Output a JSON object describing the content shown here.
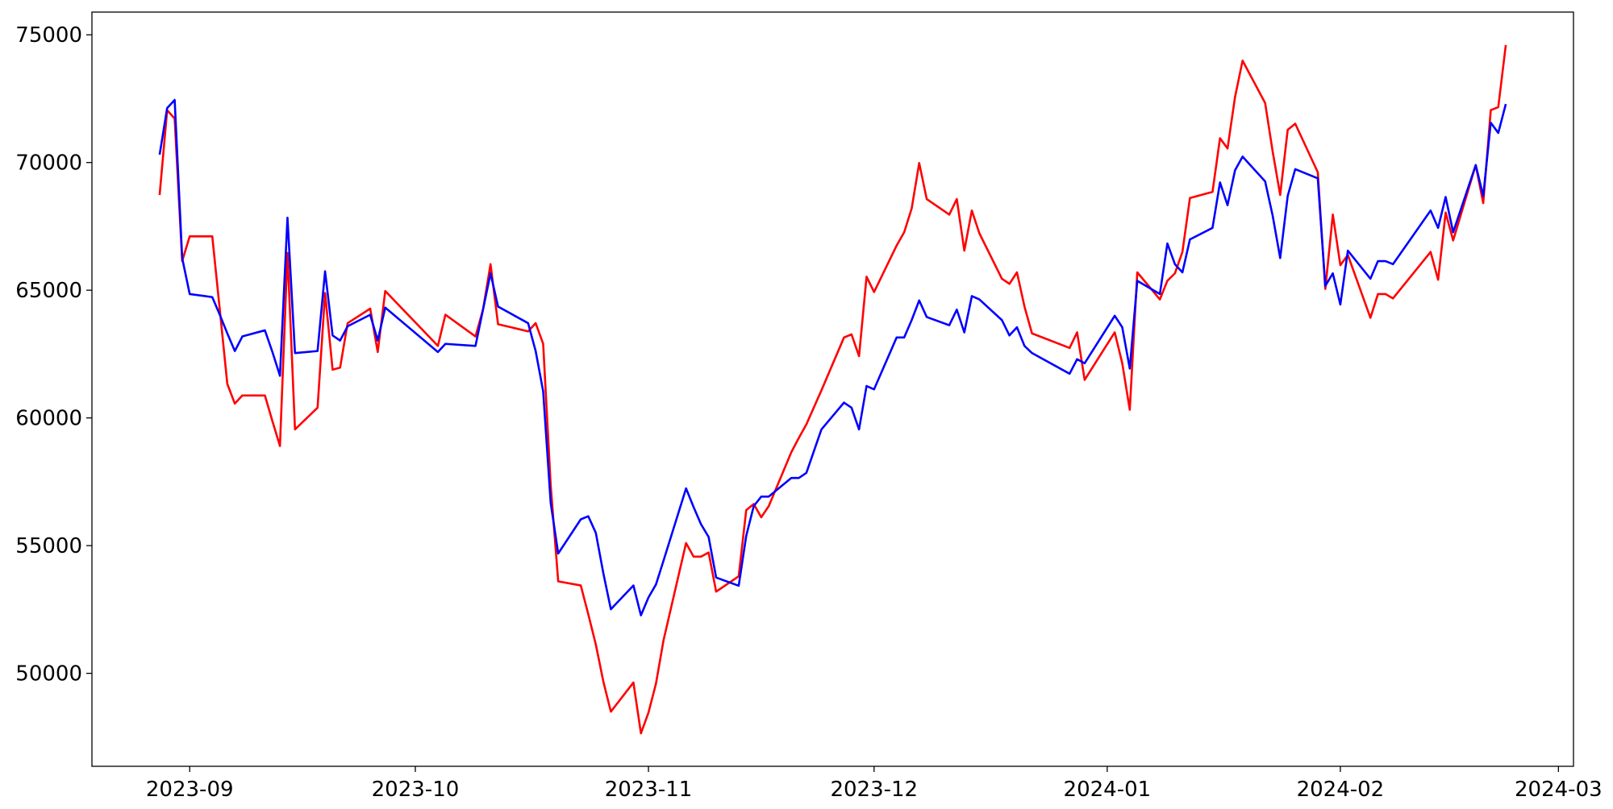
{
  "chart_data": {
    "type": "line",
    "x": [
      "2023-08-28",
      "2023-08-29",
      "2023-08-30",
      "2023-08-31",
      "2023-09-01",
      "2023-09-04",
      "2023-09-05",
      "2023-09-06",
      "2023-09-07",
      "2023-09-08",
      "2023-09-11",
      "2023-09-12",
      "2023-09-13",
      "2023-09-14",
      "2023-09-15",
      "2023-09-18",
      "2023-09-19",
      "2023-09-20",
      "2023-09-21",
      "2023-09-22",
      "2023-09-25",
      "2023-09-26",
      "2023-09-27",
      "2023-10-04",
      "2023-10-05",
      "2023-10-09",
      "2023-10-10",
      "2023-10-11",
      "2023-10-12",
      "2023-10-16",
      "2023-10-17",
      "2023-10-18",
      "2023-10-19",
      "2023-10-20",
      "2023-10-23",
      "2023-10-24",
      "2023-10-25",
      "2023-10-26",
      "2023-10-27",
      "2023-10-30",
      "2023-10-31",
      "2023-11-01",
      "2023-11-02",
      "2023-11-03",
      "2023-11-06",
      "2023-11-07",
      "2023-11-08",
      "2023-11-09",
      "2023-11-10",
      "2023-11-13",
      "2023-11-14",
      "2023-11-15",
      "2023-11-16",
      "2023-11-17",
      "2023-11-20",
      "2023-11-21",
      "2023-11-22",
      "2023-11-24",
      "2023-11-27",
      "2023-11-28",
      "2023-11-29",
      "2023-11-30",
      "2023-12-01",
      "2023-12-04",
      "2023-12-05",
      "2023-12-06",
      "2023-12-07",
      "2023-12-08",
      "2023-12-11",
      "2023-12-12",
      "2023-12-13",
      "2023-12-14",
      "2023-12-15",
      "2023-12-18",
      "2023-12-19",
      "2023-12-20",
      "2023-12-21",
      "2023-12-22",
      "2023-12-27",
      "2023-12-28",
      "2023-12-29",
      "2024-01-02",
      "2024-01-03",
      "2024-01-04",
      "2024-01-05",
      "2024-01-08",
      "2024-01-09",
      "2024-01-10",
      "2024-01-11",
      "2024-01-12",
      "2024-01-15",
      "2024-01-16",
      "2024-01-17",
      "2024-01-18",
      "2024-01-19",
      "2024-01-22",
      "2024-01-23",
      "2024-01-24",
      "2024-01-25",
      "2024-01-26",
      "2024-01-29",
      "2024-01-30",
      "2024-01-31",
      "2024-02-01",
      "2024-02-02",
      "2024-02-05",
      "2024-02-06",
      "2024-02-07",
      "2024-02-08",
      "2024-02-13",
      "2024-02-14",
      "2024-02-15",
      "2024-02-16",
      "2024-02-19",
      "2024-02-20",
      "2024-02-21",
      "2024-02-22",
      "2024-02-23"
    ],
    "series": [
      {
        "color": "#ff0000",
        "values": [
          68730,
          72050,
          71720,
          66140,
          67110,
          67110,
          64240,
          61330,
          60560,
          60880,
          60880,
          59870,
          58900,
          66460,
          59550,
          60400,
          64890,
          61890,
          61970,
          63710,
          64280,
          62580,
          64970,
          62820,
          64040,
          63190,
          64240,
          66020,
          63670,
          63390,
          63710,
          62900,
          57360,
          53600,
          53440,
          52310,
          51130,
          49680,
          48500,
          49640,
          47650,
          48460,
          49600,
          51290,
          55100,
          54570,
          54570,
          54730,
          53200,
          53800,
          56390,
          56630,
          56110,
          56550,
          58660,
          59220,
          59750,
          61080,
          63150,
          63270,
          62420,
          65530,
          64930,
          66750,
          67270,
          68200,
          69980,
          68570,
          67960,
          68570,
          66550,
          68120,
          67230,
          65450,
          65250,
          65700,
          64360,
          63310,
          62740,
          63350,
          61490,
          63350,
          62140,
          60320,
          65700,
          64640,
          65370,
          65660,
          66500,
          68610,
          68850,
          70950,
          70550,
          72570,
          73990,
          72330,
          70430,
          68730,
          71280,
          71520,
          69620,
          65050,
          67960,
          65980,
          66380,
          63920,
          64850,
          64850,
          64680,
          66500,
          65410,
          68040,
          66950,
          69900,
          68410,
          72050,
          72170,
          74600
        ]
      },
      {
        "color": "#0000ff",
        "values": [
          70307,
          72130,
          72450,
          66260,
          64850,
          64730,
          64040,
          63310,
          62620,
          63190,
          63430,
          62580,
          61650,
          67840,
          62540,
          62620,
          65740,
          63230,
          63030,
          63590,
          64040,
          63030,
          64320,
          62580,
          62900,
          62820,
          64240,
          65660,
          64360,
          63710,
          62620,
          61040,
          56670,
          54690,
          56030,
          56150,
          55500,
          53920,
          52510,
          53440,
          52270,
          52970,
          53480,
          54410,
          57240,
          56510,
          55830,
          55340,
          53750,
          53430,
          55380,
          56550,
          56920,
          56920,
          57650,
          57650,
          57850,
          59550,
          60600,
          60400,
          59550,
          61250,
          61120,
          63150,
          63150,
          63830,
          64600,
          63950,
          63630,
          64240,
          63350,
          64770,
          64640,
          63830,
          63230,
          63550,
          62820,
          62540,
          61730,
          62300,
          62140,
          64000,
          63550,
          61930,
          65370,
          64850,
          66830,
          66020,
          65700,
          66990,
          67440,
          69220,
          68330,
          69700,
          70230,
          69260,
          67920,
          66260,
          68690,
          69740,
          69380,
          65170,
          65660,
          64440,
          66550,
          65450,
          66140,
          66140,
          66020,
          68120,
          67440,
          68650,
          67270,
          69900,
          68690,
          71560,
          71160,
          72290
        ]
      }
    ],
    "xlim": [
      "2023-08-19",
      "2024-03-03"
    ],
    "xticks": [
      {
        "value": "2023-09-01",
        "label": "2023-09"
      },
      {
        "value": "2023-10-01",
        "label": "2023-10"
      },
      {
        "value": "2023-11-01",
        "label": "2023-11"
      },
      {
        "value": "2023-12-01",
        "label": "2023-12"
      },
      {
        "value": "2024-01-01",
        "label": "2024-01"
      },
      {
        "value": "2024-02-01",
        "label": "2024-02"
      },
      {
        "value": "2024-03-01",
        "label": "2024-03"
      }
    ],
    "ylim": [
      46360,
      75890
    ],
    "yticks": [
      50000,
      55000,
      60000,
      65000,
      70000,
      75000
    ],
    "grid": false
  }
}
